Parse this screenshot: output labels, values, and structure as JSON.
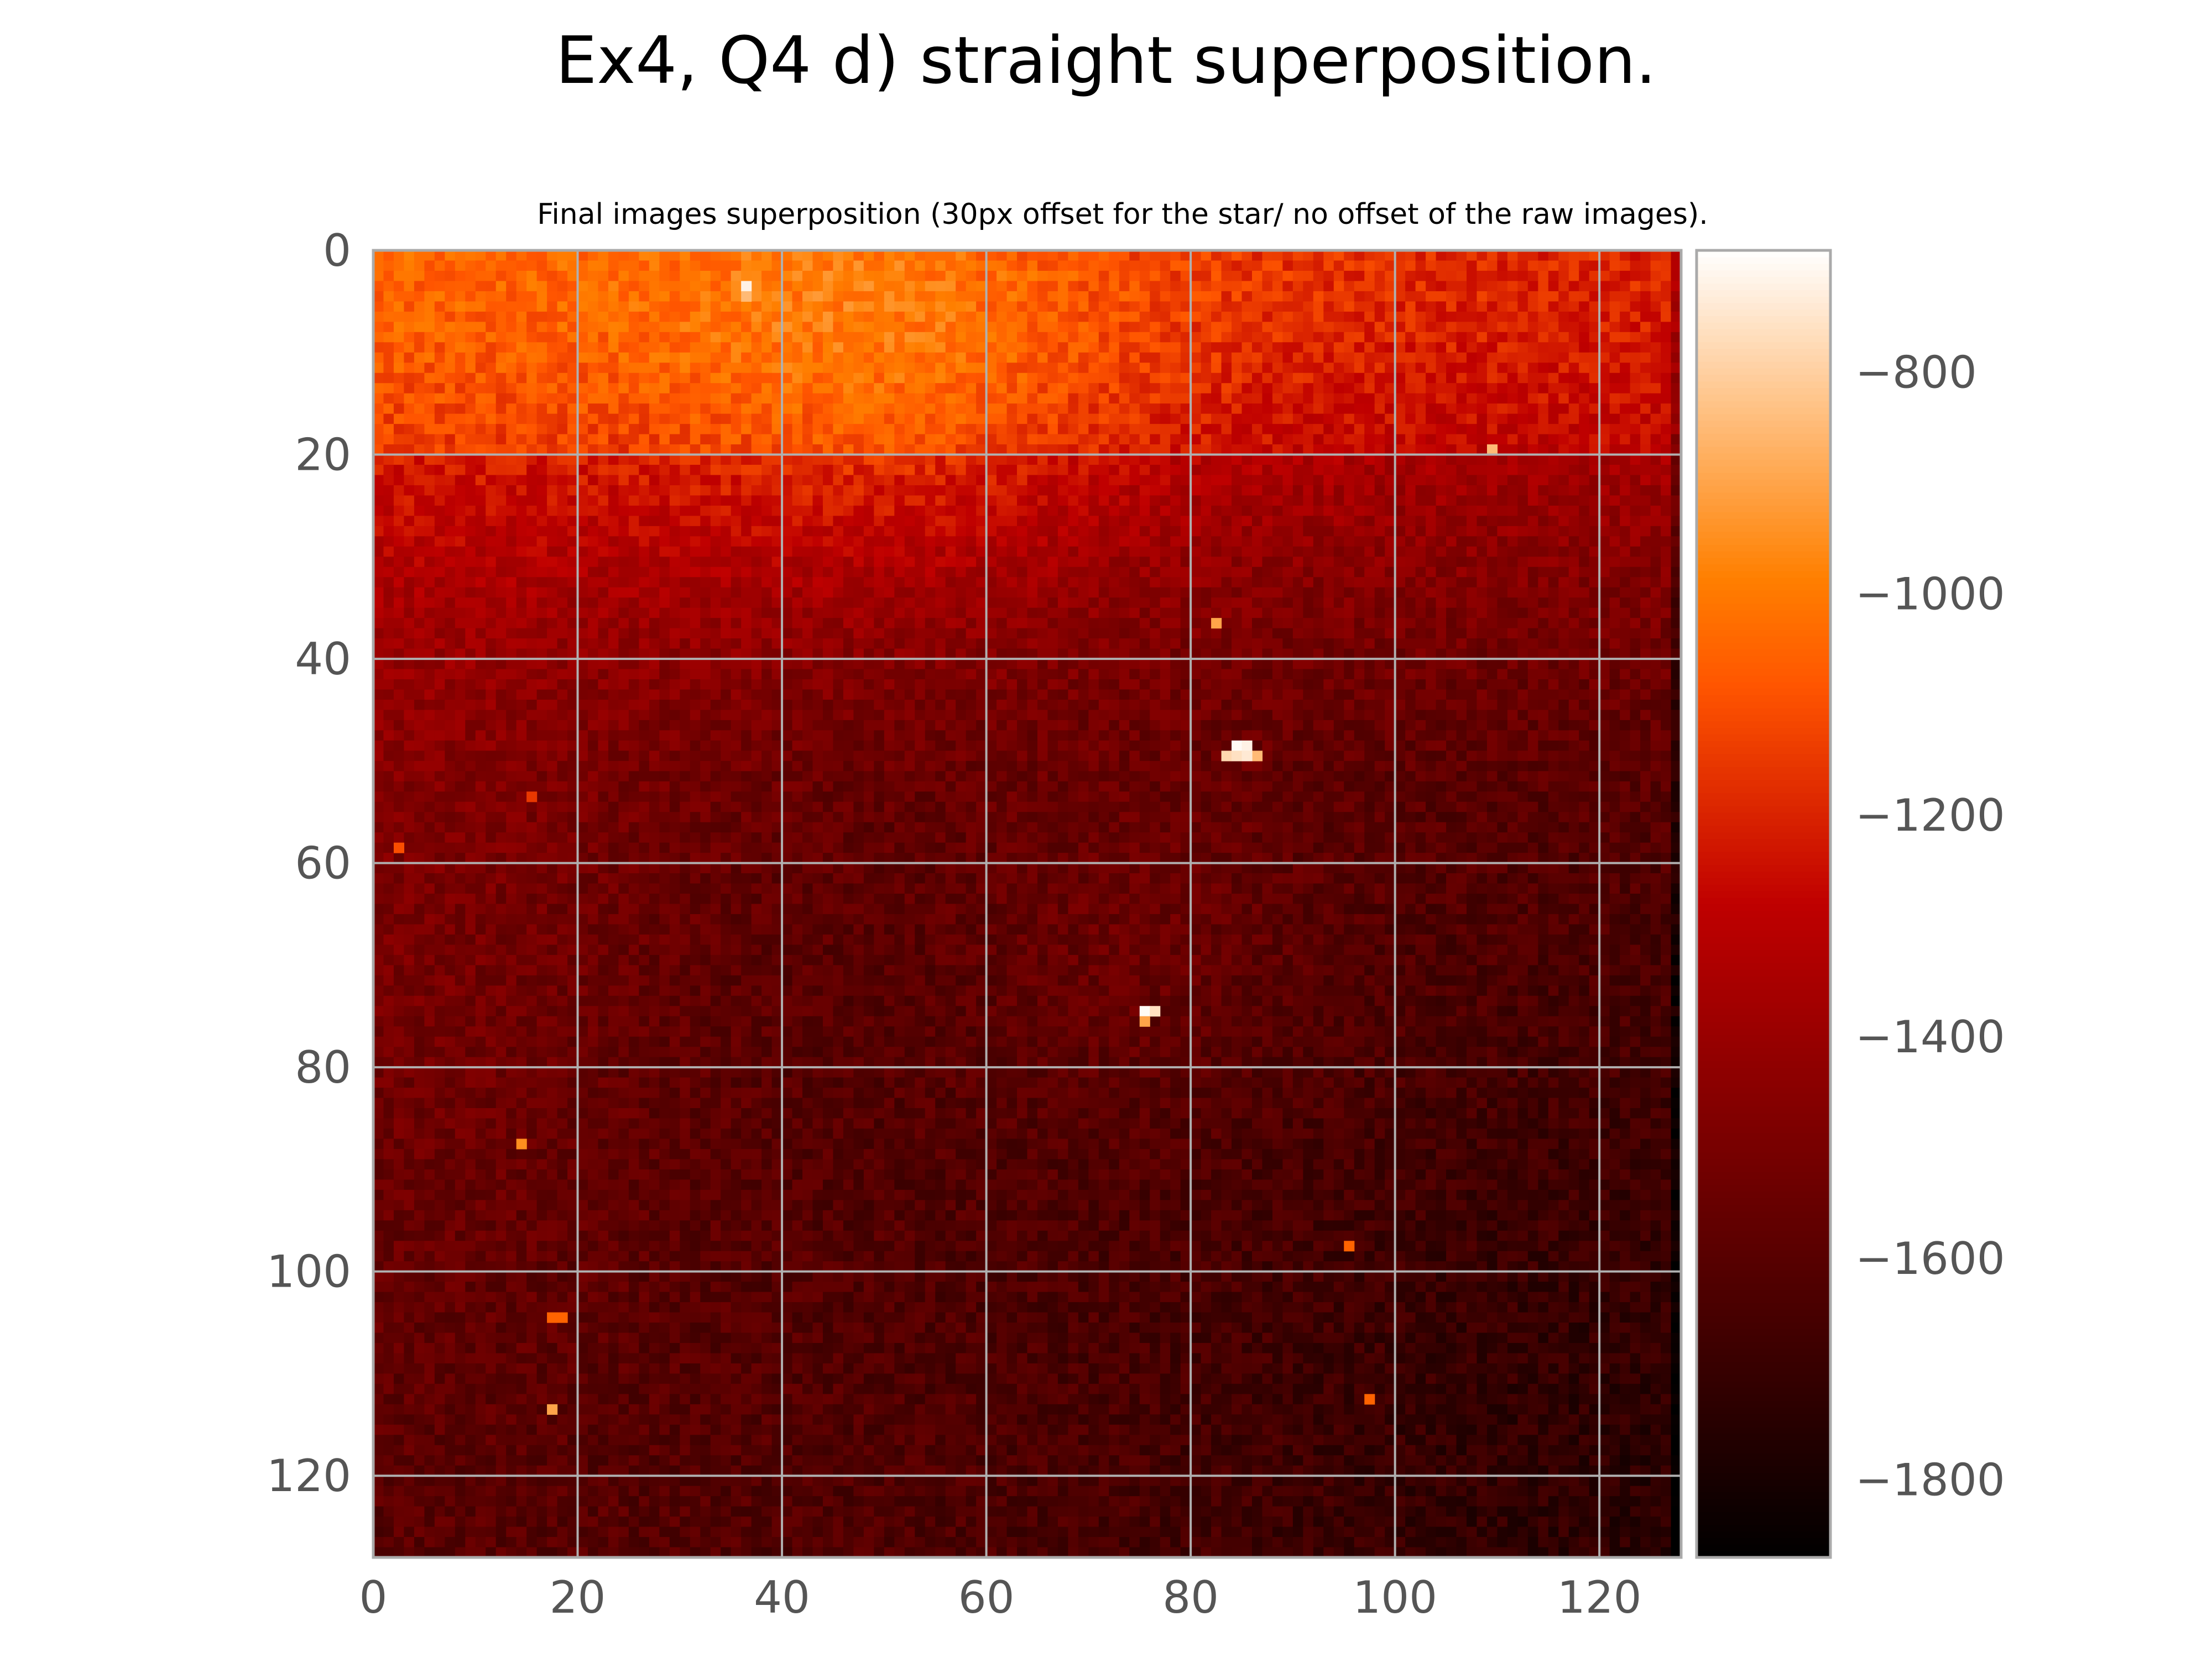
{
  "figure": {
    "suptitle": "Ex4, Q4 d) straight superposition."
  },
  "chart_data": {
    "type": "heatmap",
    "title": "Final images superposition (30px offset for the star/ no offset of the raw images).",
    "xlabel": "",
    "ylabel": "",
    "image_shape": [
      128,
      128
    ],
    "x_ticks": [
      0,
      20,
      40,
      60,
      80,
      100,
      120
    ],
    "y_ticks": [
      0,
      20,
      40,
      60,
      80,
      100,
      120
    ],
    "y_axis_inverted": true,
    "grid": true,
    "grid_color": "#b0b0b0",
    "colormap": "gist_heat",
    "colorbar": {
      "location": "right",
      "vmin": -1870,
      "vmax": -690,
      "ticks": [
        -800,
        -1000,
        -1200,
        -1400,
        -1600,
        -1800
      ]
    },
    "background": {
      "description_values": [
        {
          "region": "rows 0-20, columns 0-10",
          "approx_value": -900
        },
        {
          "region": "rows 0-20, columns 40-60",
          "approx_value": -1000
        },
        {
          "region": "rows 20-40, columns 40-60",
          "approx_value": -1100
        },
        {
          "region": "rows 0-20, columns 100-128",
          "approx_value": -1250
        },
        {
          "region": "rows 60-80, left",
          "approx_value": -1350
        },
        {
          "region": "rows 100-128",
          "approx_value": -1600
        }
      ]
    },
    "hot_pixels": [
      {
        "x": 36,
        "y": 3,
        "value": -720
      },
      {
        "x": 36,
        "y": 4,
        "value": -850
      },
      {
        "x": 84,
        "y": 48,
        "value": -700
      },
      {
        "x": 85,
        "y": 48,
        "value": -720
      },
      {
        "x": 83,
        "y": 49,
        "value": -780
      },
      {
        "x": 86,
        "y": 49,
        "value": -850
      },
      {
        "x": 84,
        "y": 49,
        "value": -760
      },
      {
        "x": 85,
        "y": 49,
        "value": -740
      },
      {
        "x": 75,
        "y": 74,
        "value": -700
      },
      {
        "x": 76,
        "y": 74,
        "value": -760
      },
      {
        "x": 75,
        "y": 75,
        "value": -900
      },
      {
        "x": 109,
        "y": 19,
        "value": -850
      },
      {
        "x": 82,
        "y": 36,
        "value": -900
      },
      {
        "x": 14,
        "y": 87,
        "value": -950
      },
      {
        "x": 17,
        "y": 104,
        "value": -1050
      },
      {
        "x": 18,
        "y": 104,
        "value": -1050
      },
      {
        "x": 17,
        "y": 113,
        "value": -900
      },
      {
        "x": 95,
        "y": 97,
        "value": -1050
      },
      {
        "x": 97,
        "y": 112,
        "value": -1050
      },
      {
        "x": 2,
        "y": 58,
        "value": -1100
      },
      {
        "x": 15,
        "y": 53,
        "value": -1150
      }
    ]
  }
}
